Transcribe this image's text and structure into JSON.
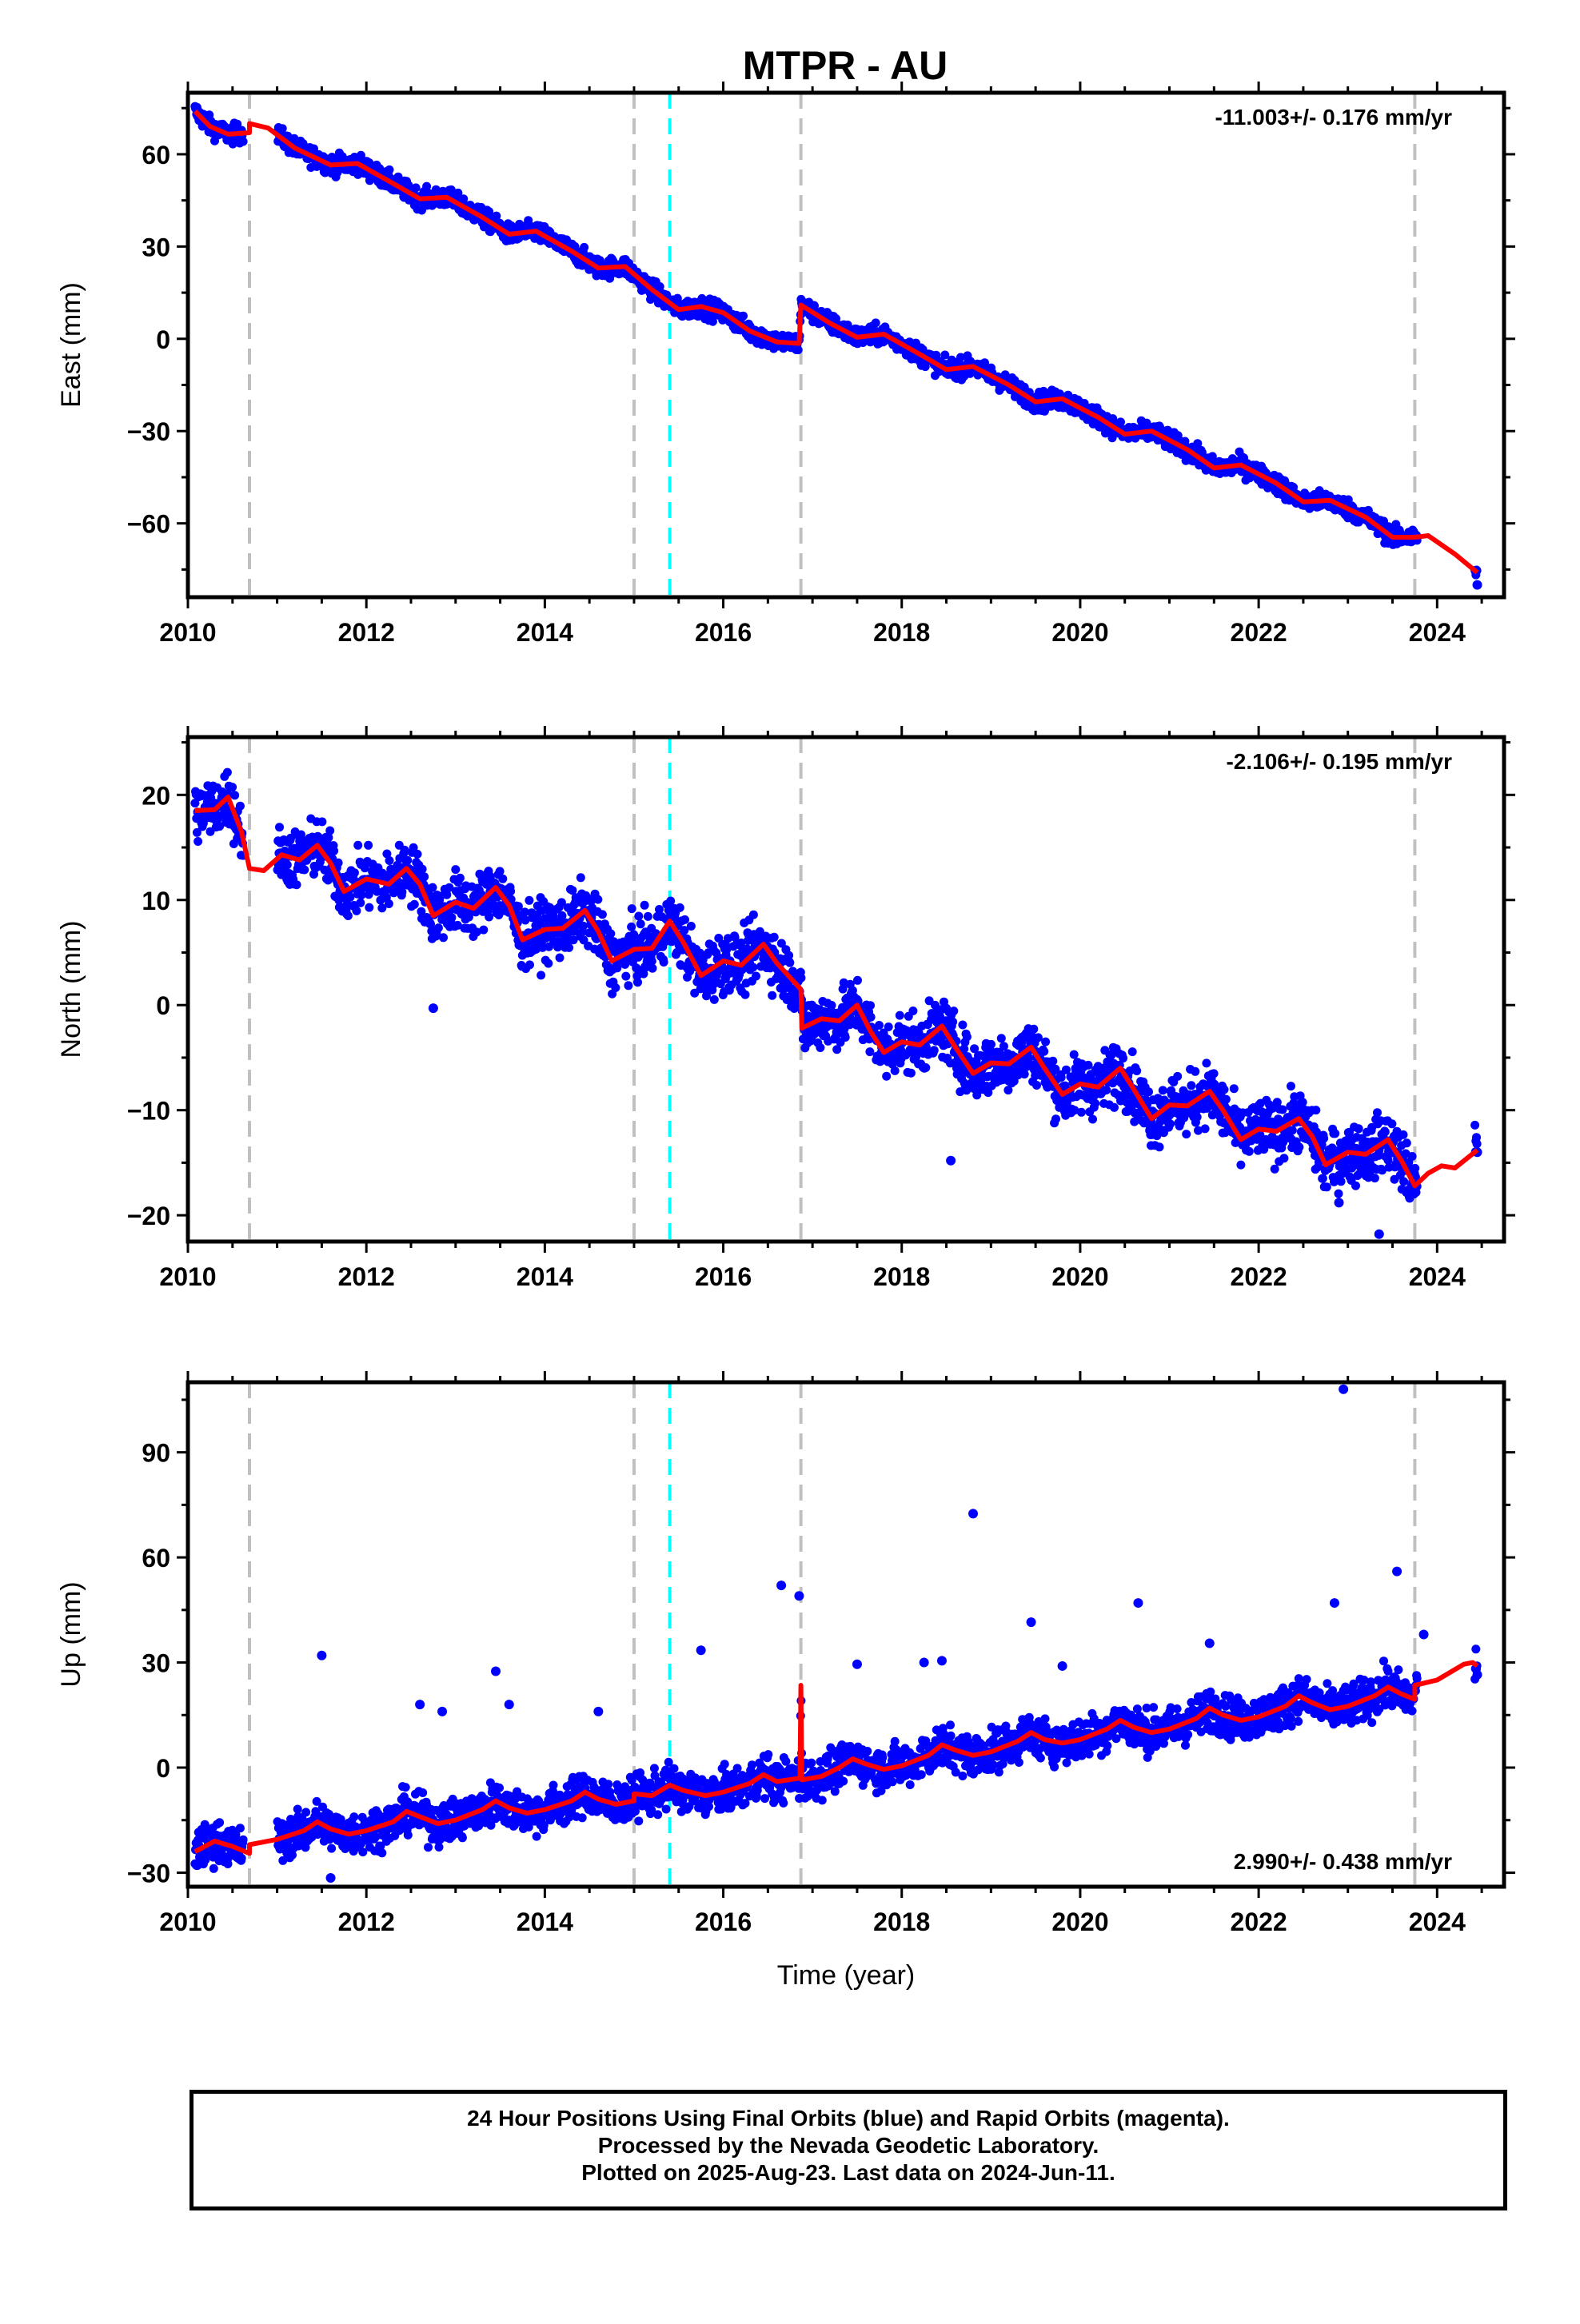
{
  "title": "MTPR - AU",
  "colors": {
    "data_points": "#0000ff",
    "model_fit": "#ff0000",
    "equipment_change": "#c0c0c0",
    "earthquake_line": "#00ffff",
    "frame": "#000000"
  },
  "chart_data": [
    {
      "type": "scatter",
      "name": "East",
      "ylabel": "East (mm)",
      "xlabel": "",
      "rate_text": "-11.003+/- 0.176 mm/yr",
      "rate_position": "top-right",
      "xlim": [
        2010.0,
        2024.75
      ],
      "ylim": [
        -84,
        80
      ],
      "x_ticks": [
        2010,
        2012,
        2014,
        2016,
        2018,
        2020,
        2022,
        2024
      ],
      "x_tick_labels": [
        "2010",
        "2012",
        "2014",
        "2016",
        "2018",
        "2020",
        "2022",
        "2024"
      ],
      "y_ticks": [
        -60,
        -30,
        0,
        30,
        60
      ],
      "y_tick_labels": [
        "−60",
        "−30",
        "0",
        "30",
        "60"
      ],
      "trend_line": [
        [
          2010.08,
          74
        ],
        [
          2010.25,
          69
        ],
        [
          2010.45,
          66.5
        ],
        [
          2010.69,
          67
        ],
        [
          2010.69,
          70
        ],
        [
          2010.9,
          68.5
        ],
        [
          2011.2,
          62
        ],
        [
          2011.6,
          56.5
        ],
        [
          2011.9,
          57
        ],
        [
          2012.3,
          50.5
        ],
        [
          2012.6,
          45.5
        ],
        [
          2012.9,
          46
        ],
        [
          2013.3,
          39.5
        ],
        [
          2013.6,
          34
        ],
        [
          2013.9,
          35
        ],
        [
          2014.3,
          28.5
        ],
        [
          2014.6,
          23
        ],
        [
          2014.9,
          23.5
        ],
        [
          2015.2,
          16
        ],
        [
          2015.5,
          9.5
        ],
        [
          2015.75,
          10.5
        ],
        [
          2016.0,
          8.5
        ],
        [
          2016.3,
          2.5
        ],
        [
          2016.6,
          -1
        ],
        [
          2016.85,
          -1.5
        ],
        [
          2016.87,
          11
        ],
        [
          2017.2,
          5
        ],
        [
          2017.5,
          0.5
        ],
        [
          2017.8,
          1.5
        ],
        [
          2018.2,
          -5
        ],
        [
          2018.5,
          -10
        ],
        [
          2018.8,
          -9
        ],
        [
          2019.2,
          -15
        ],
        [
          2019.5,
          -20.5
        ],
        [
          2019.8,
          -19.5
        ],
        [
          2020.2,
          -25.5
        ],
        [
          2020.5,
          -31
        ],
        [
          2020.8,
          -30
        ],
        [
          2021.2,
          -36
        ],
        [
          2021.5,
          -42
        ],
        [
          2021.8,
          -41
        ],
        [
          2022.2,
          -47
        ],
        [
          2022.5,
          -53
        ],
        [
          2022.8,
          -52.5
        ],
        [
          2023.2,
          -58
        ],
        [
          2023.5,
          -64.5
        ],
        [
          2023.75,
          -64.5
        ],
        [
          2023.9,
          -64
        ],
        [
          2024.2,
          -70
        ],
        [
          2024.45,
          -76
        ]
      ],
      "breaks": [
        2010.69,
        2015.0,
        2016.87,
        2023.75
      ],
      "earthquakes": [
        2015.4
      ],
      "outlier_points": [
        [
          2024.45,
          -80
        ]
      ]
    },
    {
      "type": "scatter",
      "name": "North",
      "ylabel": "North (mm)",
      "xlabel": "",
      "rate_text": "-2.106+/- 0.195 mm/yr",
      "rate_position": "top-right",
      "xlim": [
        2010.0,
        2024.75
      ],
      "ylim": [
        -22.5,
        25.5
      ],
      "x_ticks": [
        2010,
        2012,
        2014,
        2016,
        2018,
        2020,
        2022,
        2024
      ],
      "x_tick_labels": [
        "2010",
        "2012",
        "2014",
        "2016",
        "2018",
        "2020",
        "2022",
        "2024"
      ],
      "y_ticks": [
        -20,
        -10,
        0,
        10,
        20
      ],
      "y_tick_labels": [
        "−20",
        "−10",
        "0",
        "10",
        "20"
      ],
      "trend_line": [
        [
          2010.08,
          18.5
        ],
        [
          2010.3,
          18.6
        ],
        [
          2010.45,
          19.8
        ],
        [
          2010.6,
          16.5
        ],
        [
          2010.69,
          13
        ],
        [
          2010.85,
          12.8
        ],
        [
          2011.05,
          14.3
        ],
        [
          2011.25,
          13.8
        ],
        [
          2011.45,
          15.2
        ],
        [
          2011.6,
          13.5
        ],
        [
          2011.75,
          10.8
        ],
        [
          2012.0,
          12
        ],
        [
          2012.25,
          11.5
        ],
        [
          2012.45,
          13
        ],
        [
          2012.6,
          11.5
        ],
        [
          2012.75,
          8.5
        ],
        [
          2013.0,
          9.8
        ],
        [
          2013.2,
          9.2
        ],
        [
          2013.45,
          11.2
        ],
        [
          2013.6,
          9.5
        ],
        [
          2013.75,
          6.2
        ],
        [
          2014.0,
          7.2
        ],
        [
          2014.2,
          7.3
        ],
        [
          2014.45,
          9
        ],
        [
          2014.6,
          7
        ],
        [
          2014.75,
          4.2
        ],
        [
          2015.0,
          5.3
        ],
        [
          2015.2,
          5.4
        ],
        [
          2015.4,
          8
        ],
        [
          2015.55,
          6
        ],
        [
          2015.75,
          2.8
        ],
        [
          2016.0,
          4.2
        ],
        [
          2016.2,
          3.8
        ],
        [
          2016.45,
          5.8
        ],
        [
          2016.6,
          4
        ],
        [
          2016.87,
          1.5
        ],
        [
          2016.88,
          -2.2
        ],
        [
          2017.1,
          -1.3
        ],
        [
          2017.3,
          -1.5
        ],
        [
          2017.5,
          0
        ],
        [
          2017.65,
          -2.5
        ],
        [
          2017.8,
          -4.5
        ],
        [
          2018.0,
          -3.5
        ],
        [
          2018.2,
          -3.8
        ],
        [
          2018.45,
          -2
        ],
        [
          2018.6,
          -4
        ],
        [
          2018.8,
          -6.5
        ],
        [
          2019.0,
          -5.5
        ],
        [
          2019.2,
          -5.6
        ],
        [
          2019.45,
          -4
        ],
        [
          2019.6,
          -6
        ],
        [
          2019.8,
          -8.5
        ],
        [
          2020.0,
          -7.5
        ],
        [
          2020.2,
          -7.8
        ],
        [
          2020.45,
          -6
        ],
        [
          2020.6,
          -8
        ],
        [
          2020.8,
          -10.8
        ],
        [
          2021.0,
          -9.5
        ],
        [
          2021.2,
          -9.6
        ],
        [
          2021.45,
          -8.2
        ],
        [
          2021.6,
          -10
        ],
        [
          2021.8,
          -12.8
        ],
        [
          2022.0,
          -11.8
        ],
        [
          2022.2,
          -12
        ],
        [
          2022.45,
          -10.8
        ],
        [
          2022.6,
          -12.5
        ],
        [
          2022.75,
          -15.2
        ],
        [
          2023.0,
          -14
        ],
        [
          2023.2,
          -14.2
        ],
        [
          2023.45,
          -12.8
        ],
        [
          2023.6,
          -14.8
        ],
        [
          2023.75,
          -17.2
        ],
        [
          2023.9,
          -16
        ],
        [
          2024.05,
          -15.3
        ],
        [
          2024.2,
          -15.5
        ],
        [
          2024.45,
          -13.8
        ]
      ],
      "breaks": [
        2010.69,
        2015.0,
        2016.87,
        2023.75
      ],
      "earthquakes": [
        2015.4
      ],
      "outlier_points": [
        [
          2012.75,
          -0.3
        ],
        [
          2018.55,
          -14.8
        ],
        [
          2022.9,
          -18.8
        ],
        [
          2023.35,
          -21.8
        ],
        [
          2024.45,
          -14
        ]
      ]
    },
    {
      "type": "scatter",
      "name": "Up",
      "ylabel": "Up (mm)",
      "xlabel": "Time (year)",
      "rate_text": "2.990+/- 0.438 mm/yr",
      "rate_position": "bottom-right",
      "xlim": [
        2010.0,
        2024.75
      ],
      "ylim": [
        -34,
        110
      ],
      "x_ticks": [
        2010,
        2012,
        2014,
        2016,
        2018,
        2020,
        2022,
        2024
      ],
      "x_tick_labels": [
        "2010",
        "2012",
        "2014",
        "2016",
        "2018",
        "2020",
        "2022",
        "2024"
      ],
      "y_ticks": [
        -30,
        0,
        30,
        60,
        90
      ],
      "y_tick_labels": [
        "−30",
        "0",
        "30",
        "60",
        "90"
      ],
      "trend_line": [
        [
          2010.08,
          -24
        ],
        [
          2010.3,
          -21
        ],
        [
          2010.5,
          -22.5
        ],
        [
          2010.69,
          -24.5
        ],
        [
          2010.69,
          -22
        ],
        [
          2011.0,
          -20.5
        ],
        [
          2011.3,
          -18
        ],
        [
          2011.45,
          -15.5
        ],
        [
          2011.6,
          -17.5
        ],
        [
          2011.8,
          -19
        ],
        [
          2012.0,
          -18
        ],
        [
          2012.3,
          -15.5
        ],
        [
          2012.45,
          -12.5
        ],
        [
          2012.6,
          -14
        ],
        [
          2012.8,
          -16
        ],
        [
          2013.0,
          -15
        ],
        [
          2013.3,
          -12
        ],
        [
          2013.45,
          -9.5
        ],
        [
          2013.6,
          -11.5
        ],
        [
          2013.8,
          -13
        ],
        [
          2014.0,
          -12
        ],
        [
          2014.3,
          -9.5
        ],
        [
          2014.45,
          -7
        ],
        [
          2014.6,
          -9
        ],
        [
          2014.8,
          -10.5
        ],
        [
          2015.0,
          -9.5
        ],
        [
          2015.0,
          -7.5
        ],
        [
          2015.2,
          -8
        ],
        [
          2015.4,
          -5
        ],
        [
          2015.55,
          -6.5
        ],
        [
          2015.8,
          -8
        ],
        [
          2016.0,
          -7
        ],
        [
          2016.3,
          -4.5
        ],
        [
          2016.45,
          -2
        ],
        [
          2016.6,
          -4
        ],
        [
          2016.86,
          -3
        ],
        [
          2016.87,
          23.5
        ],
        [
          2016.88,
          -3.5
        ],
        [
          2017.1,
          -2.5
        ],
        [
          2017.3,
          0
        ],
        [
          2017.45,
          2.5
        ],
        [
          2017.6,
          1
        ],
        [
          2017.8,
          -0.5
        ],
        [
          2018.0,
          0.5
        ],
        [
          2018.3,
          3.5
        ],
        [
          2018.45,
          6.5
        ],
        [
          2018.6,
          5
        ],
        [
          2018.8,
          3.5
        ],
        [
          2019.0,
          4.5
        ],
        [
          2019.3,
          7.5
        ],
        [
          2019.45,
          10
        ],
        [
          2019.6,
          8
        ],
        [
          2019.8,
          7
        ],
        [
          2020.0,
          8
        ],
        [
          2020.3,
          11
        ],
        [
          2020.45,
          13.5
        ],
        [
          2020.6,
          11.5
        ],
        [
          2020.8,
          10
        ],
        [
          2021.0,
          11
        ],
        [
          2021.3,
          14
        ],
        [
          2021.45,
          17
        ],
        [
          2021.6,
          15
        ],
        [
          2021.8,
          13.5
        ],
        [
          2022.0,
          14.5
        ],
        [
          2022.3,
          17.5
        ],
        [
          2022.45,
          20.5
        ],
        [
          2022.6,
          18.5
        ],
        [
          2022.8,
          16.5
        ],
        [
          2023.0,
          17.5
        ],
        [
          2023.3,
          20.5
        ],
        [
          2023.45,
          23
        ],
        [
          2023.6,
          21
        ],
        [
          2023.75,
          19.5
        ],
        [
          2023.75,
          23.5
        ],
        [
          2024.0,
          25
        ],
        [
          2024.3,
          29.5
        ],
        [
          2024.4,
          30
        ],
        [
          2024.45,
          29
        ]
      ],
      "breaks": [
        2010.69,
        2015.0,
        2016.87,
        2023.75
      ],
      "earthquakes": [
        2015.4
      ],
      "outlier_points": [
        [
          2011.5,
          32
        ],
        [
          2011.6,
          -31.5
        ],
        [
          2012.6,
          18
        ],
        [
          2012.85,
          16
        ],
        [
          2013.45,
          27.5
        ],
        [
          2013.6,
          18
        ],
        [
          2014.6,
          16
        ],
        [
          2015.75,
          33.5
        ],
        [
          2016.65,
          52
        ],
        [
          2016.85,
          49
        ],
        [
          2017.5,
          29.5
        ],
        [
          2018.25,
          30
        ],
        [
          2018.45,
          30.5
        ],
        [
          2018.8,
          72.5
        ],
        [
          2019.45,
          41.5
        ],
        [
          2019.8,
          29
        ],
        [
          2020.65,
          47
        ],
        [
          2021.45,
          35.5
        ],
        [
          2022.85,
          47
        ],
        [
          2022.95,
          108
        ],
        [
          2023.55,
          56
        ],
        [
          2023.85,
          38
        ],
        [
          2024.45,
          26.5
        ]
      ]
    }
  ],
  "footer": {
    "line1": "24 Hour Positions Using Final Orbits (blue) and Rapid Orbits (magenta).",
    "line2": "Processed by the Nevada Geodetic Laboratory.",
    "line3": "Plotted on 2025-Aug-23. Last data on 2024-Jun-11."
  }
}
